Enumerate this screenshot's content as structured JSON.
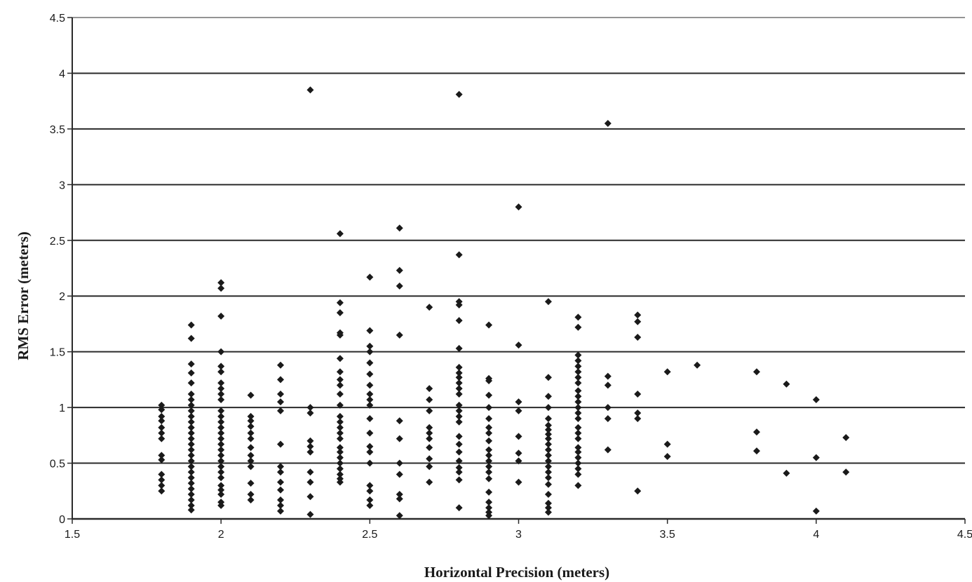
{
  "chart_data": {
    "type": "scatter",
    "title": "",
    "xlabel": "Horizontal Precision (meters)",
    "ylabel": "RMS Error (meters)",
    "xlim": [
      1.5,
      4.5
    ],
    "ylim": [
      0,
      4.5
    ],
    "xticks": [
      "1.5",
      "2",
      "2.5",
      "3",
      "3.5",
      "4",
      "4.5"
    ],
    "yticks": [
      "0",
      "0.5",
      "1",
      "1.5",
      "2",
      "2.5",
      "3",
      "3.5",
      "4",
      "4.5"
    ],
    "grid": "horizontal",
    "legend": "none",
    "marker": "diamond",
    "colors": {
      "marker": "#1a1a1a",
      "grid": "#2a2a2a",
      "background": "#ffffff"
    },
    "points": [
      [
        1.8,
        1.02
      ],
      [
        1.8,
        0.98
      ],
      [
        1.8,
        0.92
      ],
      [
        1.8,
        0.88
      ],
      [
        1.8,
        0.82
      ],
      [
        1.8,
        0.77
      ],
      [
        1.8,
        0.72
      ],
      [
        1.8,
        0.57
      ],
      [
        1.8,
        0.53
      ],
      [
        1.8,
        0.4
      ],
      [
        1.8,
        0.35
      ],
      [
        1.8,
        0.3
      ],
      [
        1.8,
        0.25
      ],
      [
        1.9,
        1.74
      ],
      [
        1.9,
        1.62
      ],
      [
        1.9,
        1.39
      ],
      [
        1.9,
        1.31
      ],
      [
        1.9,
        1.22
      ],
      [
        1.9,
        1.12
      ],
      [
        1.9,
        1.07
      ],
      [
        1.9,
        1.02
      ],
      [
        1.9,
        0.97
      ],
      [
        1.9,
        0.92
      ],
      [
        1.9,
        0.87
      ],
      [
        1.9,
        0.82
      ],
      [
        1.9,
        0.77
      ],
      [
        1.9,
        0.72
      ],
      [
        1.9,
        0.67
      ],
      [
        1.9,
        0.62
      ],
      [
        1.9,
        0.57
      ],
      [
        1.9,
        0.52
      ],
      [
        1.9,
        0.47
      ],
      [
        1.9,
        0.42
      ],
      [
        1.9,
        0.37
      ],
      [
        1.9,
        0.32
      ],
      [
        1.9,
        0.27
      ],
      [
        1.9,
        0.22
      ],
      [
        1.9,
        0.17
      ],
      [
        1.9,
        0.12
      ],
      [
        1.9,
        0.08
      ],
      [
        2.0,
        2.12
      ],
      [
        2.0,
        2.07
      ],
      [
        2.0,
        1.82
      ],
      [
        2.0,
        1.5
      ],
      [
        2.0,
        1.37
      ],
      [
        2.0,
        1.32
      ],
      [
        2.0,
        1.22
      ],
      [
        2.0,
        1.17
      ],
      [
        2.0,
        1.12
      ],
      [
        2.0,
        1.07
      ],
      [
        2.0,
        0.97
      ],
      [
        2.0,
        0.92
      ],
      [
        2.0,
        0.87
      ],
      [
        2.0,
        0.82
      ],
      [
        2.0,
        0.77
      ],
      [
        2.0,
        0.72
      ],
      [
        2.0,
        0.67
      ],
      [
        2.0,
        0.62
      ],
      [
        2.0,
        0.57
      ],
      [
        2.0,
        0.52
      ],
      [
        2.0,
        0.47
      ],
      [
        2.0,
        0.42
      ],
      [
        2.0,
        0.37
      ],
      [
        2.0,
        0.3
      ],
      [
        2.0,
        0.26
      ],
      [
        2.0,
        0.22
      ],
      [
        2.0,
        0.15
      ],
      [
        2.0,
        0.12
      ],
      [
        2.1,
        1.11
      ],
      [
        2.1,
        0.92
      ],
      [
        2.1,
        0.88
      ],
      [
        2.1,
        0.83
      ],
      [
        2.1,
        0.77
      ],
      [
        2.1,
        0.72
      ],
      [
        2.1,
        0.64
      ],
      [
        2.1,
        0.57
      ],
      [
        2.1,
        0.52
      ],
      [
        2.1,
        0.47
      ],
      [
        2.1,
        0.32
      ],
      [
        2.1,
        0.22
      ],
      [
        2.1,
        0.17
      ],
      [
        2.2,
        1.38
      ],
      [
        2.2,
        1.25
      ],
      [
        2.2,
        1.12
      ],
      [
        2.2,
        1.05
      ],
      [
        2.2,
        0.97
      ],
      [
        2.2,
        0.67
      ],
      [
        2.2,
        0.47
      ],
      [
        2.2,
        0.42
      ],
      [
        2.2,
        0.33
      ],
      [
        2.2,
        0.26
      ],
      [
        2.2,
        0.17
      ],
      [
        2.2,
        0.12
      ],
      [
        2.2,
        0.07
      ],
      [
        2.3,
        3.85
      ],
      [
        2.3,
        1.0
      ],
      [
        2.3,
        0.95
      ],
      [
        2.3,
        0.7
      ],
      [
        2.3,
        0.65
      ],
      [
        2.3,
        0.6
      ],
      [
        2.3,
        0.42
      ],
      [
        2.3,
        0.33
      ],
      [
        2.3,
        0.2
      ],
      [
        2.3,
        0.04
      ],
      [
        2.4,
        2.56
      ],
      [
        2.4,
        1.94
      ],
      [
        2.4,
        1.85
      ],
      [
        2.4,
        1.67
      ],
      [
        2.4,
        1.65
      ],
      [
        2.4,
        1.44
      ],
      [
        2.4,
        1.32
      ],
      [
        2.4,
        1.25
      ],
      [
        2.4,
        1.2
      ],
      [
        2.4,
        1.12
      ],
      [
        2.4,
        1.02
      ],
      [
        2.4,
        0.92
      ],
      [
        2.4,
        0.87
      ],
      [
        2.4,
        0.82
      ],
      [
        2.4,
        0.77
      ],
      [
        2.4,
        0.72
      ],
      [
        2.4,
        0.64
      ],
      [
        2.4,
        0.6
      ],
      [
        2.4,
        0.55
      ],
      [
        2.4,
        0.5
      ],
      [
        2.4,
        0.45
      ],
      [
        2.4,
        0.4
      ],
      [
        2.4,
        0.36
      ],
      [
        2.4,
        0.33
      ],
      [
        2.5,
        2.17
      ],
      [
        2.5,
        1.69
      ],
      [
        2.5,
        1.55
      ],
      [
        2.5,
        1.5
      ],
      [
        2.5,
        1.4
      ],
      [
        2.5,
        1.3
      ],
      [
        2.5,
        1.2
      ],
      [
        2.5,
        1.12
      ],
      [
        2.5,
        1.07
      ],
      [
        2.5,
        1.02
      ],
      [
        2.5,
        0.9
      ],
      [
        2.5,
        0.77
      ],
      [
        2.5,
        0.65
      ],
      [
        2.5,
        0.6
      ],
      [
        2.5,
        0.5
      ],
      [
        2.5,
        0.3
      ],
      [
        2.5,
        0.25
      ],
      [
        2.5,
        0.17
      ],
      [
        2.5,
        0.12
      ],
      [
        2.6,
        2.61
      ],
      [
        2.6,
        2.23
      ],
      [
        2.6,
        2.09
      ],
      [
        2.6,
        1.65
      ],
      [
        2.6,
        0.88
      ],
      [
        2.6,
        0.72
      ],
      [
        2.6,
        0.5
      ],
      [
        2.6,
        0.4
      ],
      [
        2.6,
        0.22
      ],
      [
        2.6,
        0.18
      ],
      [
        2.6,
        0.03
      ],
      [
        2.7,
        1.9
      ],
      [
        2.7,
        1.17
      ],
      [
        2.7,
        1.07
      ],
      [
        2.7,
        0.97
      ],
      [
        2.7,
        0.82
      ],
      [
        2.7,
        0.77
      ],
      [
        2.7,
        0.72
      ],
      [
        2.7,
        0.64
      ],
      [
        2.7,
        0.54
      ],
      [
        2.7,
        0.47
      ],
      [
        2.7,
        0.33
      ],
      [
        2.8,
        3.81
      ],
      [
        2.8,
        2.37
      ],
      [
        2.8,
        1.95
      ],
      [
        2.8,
        1.92
      ],
      [
        2.8,
        1.78
      ],
      [
        2.8,
        1.53
      ],
      [
        2.8,
        1.36
      ],
      [
        2.8,
        1.31
      ],
      [
        2.8,
        1.27
      ],
      [
        2.8,
        1.22
      ],
      [
        2.8,
        1.17
      ],
      [
        2.8,
        1.12
      ],
      [
        2.8,
        1.02
      ],
      [
        2.8,
        0.97
      ],
      [
        2.8,
        0.92
      ],
      [
        2.8,
        0.87
      ],
      [
        2.8,
        0.74
      ],
      [
        2.8,
        0.67
      ],
      [
        2.8,
        0.6
      ],
      [
        2.8,
        0.52
      ],
      [
        2.8,
        0.46
      ],
      [
        2.8,
        0.42
      ],
      [
        2.8,
        0.35
      ],
      [
        2.8,
        0.1
      ],
      [
        2.9,
        1.74
      ],
      [
        2.9,
        1.26
      ],
      [
        2.9,
        1.24
      ],
      [
        2.9,
        1.11
      ],
      [
        2.9,
        1.0
      ],
      [
        2.9,
        0.9
      ],
      [
        2.9,
        0.82
      ],
      [
        2.9,
        0.77
      ],
      [
        2.9,
        0.7
      ],
      [
        2.9,
        0.62
      ],
      [
        2.9,
        0.57
      ],
      [
        2.9,
        0.52
      ],
      [
        2.9,
        0.47
      ],
      [
        2.9,
        0.42
      ],
      [
        2.9,
        0.36
      ],
      [
        2.9,
        0.24
      ],
      [
        2.9,
        0.15
      ],
      [
        2.9,
        0.1
      ],
      [
        2.9,
        0.06
      ],
      [
        2.9,
        0.03
      ],
      [
        3.0,
        2.8
      ],
      [
        3.0,
        1.56
      ],
      [
        3.0,
        1.05
      ],
      [
        3.0,
        0.97
      ],
      [
        3.0,
        0.74
      ],
      [
        3.0,
        0.59
      ],
      [
        3.0,
        0.52
      ],
      [
        3.0,
        0.33
      ],
      [
        3.1,
        1.95
      ],
      [
        3.1,
        1.27
      ],
      [
        3.1,
        1.1
      ],
      [
        3.1,
        1.0
      ],
      [
        3.1,
        0.9
      ],
      [
        3.1,
        0.84
      ],
      [
        3.1,
        0.8
      ],
      [
        3.1,
        0.76
      ],
      [
        3.1,
        0.72
      ],
      [
        3.1,
        0.67
      ],
      [
        3.1,
        0.62
      ],
      [
        3.1,
        0.57
      ],
      [
        3.1,
        0.52
      ],
      [
        3.1,
        0.47
      ],
      [
        3.1,
        0.42
      ],
      [
        3.1,
        0.37
      ],
      [
        3.1,
        0.31
      ],
      [
        3.1,
        0.22
      ],
      [
        3.1,
        0.14
      ],
      [
        3.1,
        0.1
      ],
      [
        3.1,
        0.06
      ],
      [
        3.2,
        1.81
      ],
      [
        3.2,
        1.72
      ],
      [
        3.2,
        1.47
      ],
      [
        3.2,
        1.42
      ],
      [
        3.2,
        1.37
      ],
      [
        3.2,
        1.32
      ],
      [
        3.2,
        1.27
      ],
      [
        3.2,
        1.22
      ],
      [
        3.2,
        1.15
      ],
      [
        3.2,
        1.1
      ],
      [
        3.2,
        1.05
      ],
      [
        3.2,
        1.0
      ],
      [
        3.2,
        0.95
      ],
      [
        3.2,
        0.9
      ],
      [
        3.2,
        0.82
      ],
      [
        3.2,
        0.77
      ],
      [
        3.2,
        0.72
      ],
      [
        3.2,
        0.64
      ],
      [
        3.2,
        0.6
      ],
      [
        3.2,
        0.55
      ],
      [
        3.2,
        0.5
      ],
      [
        3.2,
        0.45
      ],
      [
        3.2,
        0.4
      ],
      [
        3.2,
        0.3
      ],
      [
        3.3,
        3.55
      ],
      [
        3.3,
        1.28
      ],
      [
        3.3,
        1.2
      ],
      [
        3.3,
        1.0
      ],
      [
        3.3,
        0.9
      ],
      [
        3.3,
        0.62
      ],
      [
        3.4,
        1.83
      ],
      [
        3.4,
        1.77
      ],
      [
        3.4,
        1.63
      ],
      [
        3.4,
        1.12
      ],
      [
        3.4,
        0.95
      ],
      [
        3.4,
        0.9
      ],
      [
        3.4,
        0.25
      ],
      [
        3.5,
        1.32
      ],
      [
        3.5,
        0.67
      ],
      [
        3.5,
        0.56
      ],
      [
        3.6,
        1.38
      ],
      [
        3.8,
        1.32
      ],
      [
        3.8,
        0.78
      ],
      [
        3.8,
        0.61
      ],
      [
        3.9,
        1.21
      ],
      [
        3.9,
        0.41
      ],
      [
        4.0,
        1.07
      ],
      [
        4.0,
        0.55
      ],
      [
        4.0,
        0.07
      ],
      [
        4.1,
        0.73
      ],
      [
        4.1,
        0.42
      ]
    ]
  }
}
